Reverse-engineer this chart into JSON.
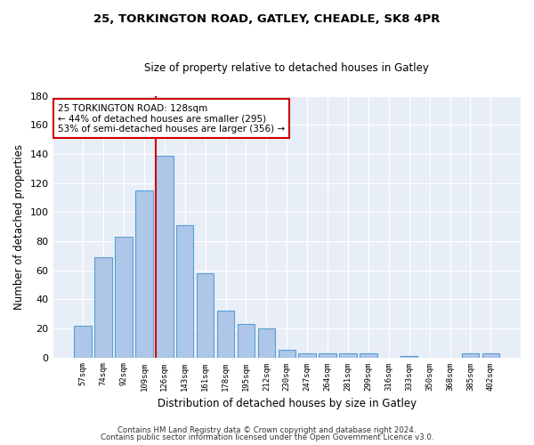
{
  "title1": "25, TORKINGTON ROAD, GATLEY, CHEADLE, SK8 4PR",
  "title2": "Size of property relative to detached houses in Gatley",
  "xlabel": "Distribution of detached houses by size in Gatley",
  "ylabel": "Number of detached properties",
  "categories": [
    "57sqm",
    "74sqm",
    "92sqm",
    "109sqm",
    "126sqm",
    "143sqm",
    "161sqm",
    "178sqm",
    "195sqm",
    "212sqm",
    "230sqm",
    "247sqm",
    "264sqm",
    "281sqm",
    "299sqm",
    "316sqm",
    "333sqm",
    "350sqm",
    "368sqm",
    "385sqm",
    "402sqm"
  ],
  "values": [
    22,
    69,
    83,
    115,
    139,
    91,
    58,
    32,
    23,
    20,
    5,
    3,
    3,
    3,
    3,
    0,
    1,
    0,
    0,
    3,
    3
  ],
  "bar_color": "#aec6e8",
  "bar_edge_color": "#5a9fd4",
  "highlight_index": 4,
  "highlight_color": "#cc0000",
  "ylim": [
    0,
    180
  ],
  "yticks": [
    0,
    20,
    40,
    60,
    80,
    100,
    120,
    140,
    160,
    180
  ],
  "annotation_title": "25 TORKINGTON ROAD: 128sqm",
  "annotation_line1": "← 44% of detached houses are smaller (295)",
  "annotation_line2": "53% of semi-detached houses are larger (356) →",
  "annotation_box_color": "#cc0000",
  "background_color": "#e8eef8",
  "footer1": "Contains HM Land Registry data © Crown copyright and database right 2024.",
  "footer2": "Contains public sector information licensed under the Open Government Licence v3.0."
}
